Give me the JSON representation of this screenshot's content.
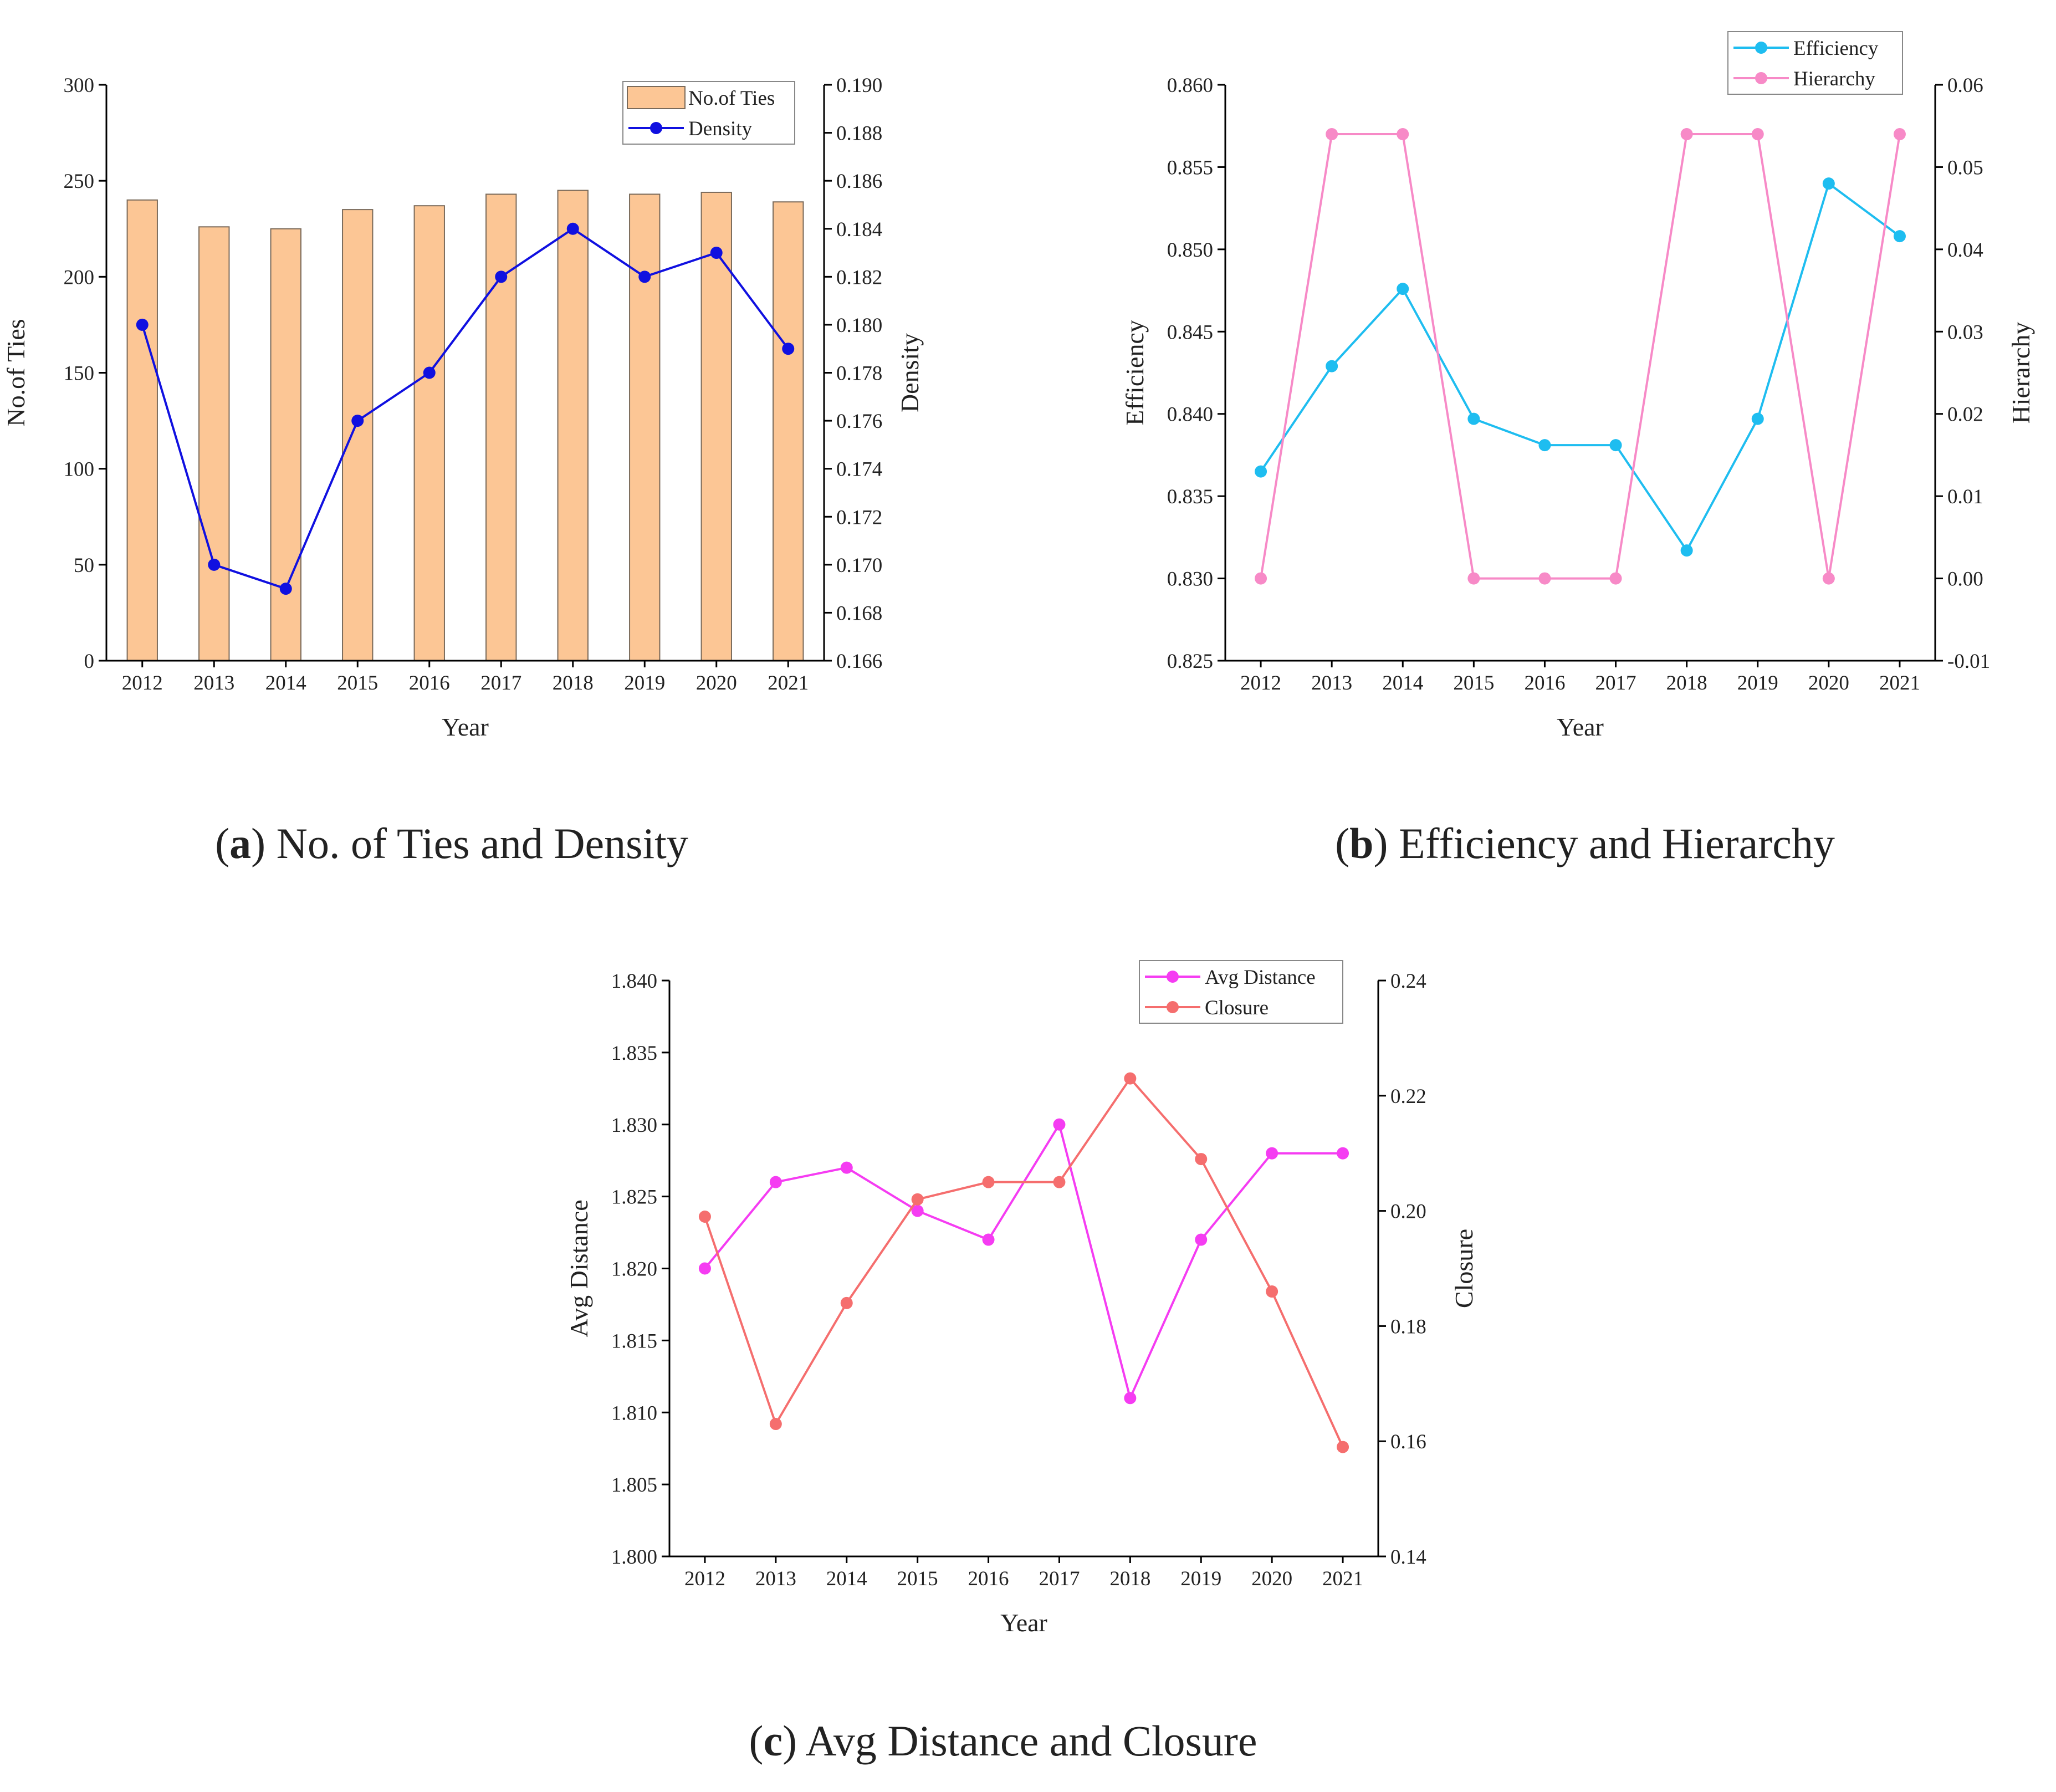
{
  "figure": {
    "captions": [
      {
        "letter": "a",
        "text": "No. of Ties and Density"
      },
      {
        "letter": "b",
        "text": "Efficiency and Hierarchy"
      },
      {
        "letter": "c",
        "text": "Avg Distance and Closure"
      }
    ]
  },
  "chart_data": [
    {
      "id": "a",
      "type": "bar+line",
      "title": "No. of Ties and Density",
      "xlabel": "Year",
      "categories": [
        "2012",
        "2013",
        "2014",
        "2015",
        "2016",
        "2017",
        "2018",
        "2019",
        "2020",
        "2021"
      ],
      "left_axis": {
        "label": "No.of Ties",
        "ylim": [
          0,
          300
        ],
        "ticks": [
          0,
          50,
          100,
          150,
          200,
          250,
          300
        ],
        "tick_labels": [
          "0",
          "50",
          "100",
          "150",
          "200",
          "250",
          "300"
        ]
      },
      "right_axis": {
        "label": "Density",
        "ylim": [
          0.166,
          0.19
        ],
        "ticks": [
          0.166,
          0.168,
          0.17,
          0.172,
          0.174,
          0.176,
          0.178,
          0.18,
          0.182,
          0.184,
          0.186,
          0.188,
          0.19
        ],
        "tick_labels": [
          "0.166",
          "0.168",
          "0.170",
          "0.172",
          "0.174",
          "0.176",
          "0.178",
          "0.180",
          "0.182",
          "0.184",
          "0.186",
          "0.188",
          "0.190"
        ]
      },
      "series": [
        {
          "name": "No.of Ties",
          "kind": "bar",
          "axis": "left",
          "color": "#FCC695",
          "values": [
            240,
            226,
            225,
            235,
            237,
            243,
            245,
            243,
            244,
            239
          ]
        },
        {
          "name": "Density",
          "kind": "line",
          "axis": "right",
          "color": "#1010E0",
          "values": [
            0.18,
            0.17,
            0.169,
            0.176,
            0.178,
            0.182,
            0.184,
            0.182,
            0.183,
            0.179
          ]
        }
      ],
      "legend": "top-right"
    },
    {
      "id": "b",
      "type": "line",
      "title": "Efficiency and Hierarchy",
      "xlabel": "Year",
      "categories": [
        "2012",
        "2013",
        "2014",
        "2015",
        "2016",
        "2017",
        "2018",
        "2019",
        "2020",
        "2021"
      ],
      "left_axis": {
        "label": "Efficiency",
        "ylim": [
          0.825,
          0.86
        ],
        "ticks": [
          0.825,
          0.83,
          0.835,
          0.84,
          0.845,
          0.85,
          0.855,
          0.86
        ],
        "tick_labels": [
          "0.825",
          "0.830",
          "0.835",
          "0.840",
          "0.845",
          "0.850",
          "0.855",
          "0.860"
        ]
      },
      "right_axis": {
        "label": "Hierarchy",
        "ylim": [
          -0.01,
          0.06
        ],
        "ticks": [
          -0.01,
          0,
          0.01,
          0.02,
          0.03,
          0.04,
          0.05,
          0.06
        ],
        "tick_labels": [
          "-0.01",
          "0.00",
          "0.01",
          "0.02",
          "0.03",
          "0.04",
          "0.05",
          "0.06"
        ]
      },
      "series": [
        {
          "name": "Efficiency",
          "kind": "line",
          "axis": "left",
          "color": "#1EBDF0",
          "values": [
            0.8365,
            0.8429,
            0.8476,
            0.8397,
            0.8381,
            0.8381,
            0.8317,
            0.8397,
            0.854,
            0.8508
          ]
        },
        {
          "name": "Hierarchy",
          "kind": "line",
          "axis": "right",
          "color": "#F78AC7",
          "values": [
            0.0,
            0.054,
            0.054,
            0.0,
            0.0,
            0.0,
            0.054,
            0.054,
            0.0,
            0.054
          ]
        }
      ],
      "legend": "top-right"
    },
    {
      "id": "c",
      "type": "line",
      "title": "Avg Distance and Closure",
      "xlabel": "Year",
      "categories": [
        "2012",
        "2013",
        "2014",
        "2015",
        "2016",
        "2017",
        "2018",
        "2019",
        "2020",
        "2021"
      ],
      "left_axis": {
        "label": "Avg Distance",
        "ylim": [
          1.8,
          1.84
        ],
        "ticks": [
          1.8,
          1.805,
          1.81,
          1.815,
          1.82,
          1.825,
          1.83,
          1.835,
          1.84
        ],
        "tick_labels": [
          "1.800",
          "1.805",
          "1.810",
          "1.815",
          "1.820",
          "1.825",
          "1.830",
          "1.835",
          "1.840"
        ]
      },
      "right_axis": {
        "label": "Closure",
        "ylim": [
          0.14,
          0.24
        ],
        "ticks": [
          0.14,
          0.16,
          0.18,
          0.2,
          0.22,
          0.24
        ],
        "tick_labels": [
          "0.14",
          "0.16",
          "0.18",
          "0.20",
          "0.22",
          "0.24"
        ]
      },
      "series": [
        {
          "name": "Avg Distance",
          "kind": "line",
          "axis": "left",
          "color": "#F53CF2",
          "values": [
            1.82,
            1.826,
            1.827,
            1.824,
            1.822,
            1.83,
            1.811,
            1.822,
            1.828,
            1.828
          ]
        },
        {
          "name": "Closure",
          "kind": "line",
          "axis": "right",
          "color": "#F56E6E",
          "values": [
            0.199,
            0.163,
            0.184,
            0.202,
            0.205,
            0.205,
            0.223,
            0.209,
            0.186,
            0.159
          ]
        }
      ],
      "legend": "top-right"
    }
  ]
}
